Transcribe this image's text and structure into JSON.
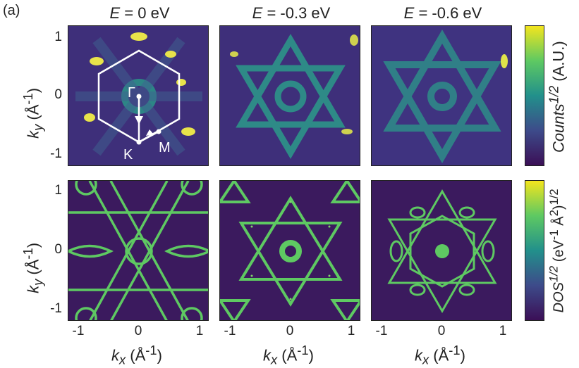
{
  "figure": {
    "panel_label": "(a)",
    "titles": [
      {
        "var": "E",
        "rest": " = 0 eV"
      },
      {
        "var": "E",
        "rest": " = -0.3 eV"
      },
      {
        "var": "E",
        "rest": " = -0.6 eV"
      }
    ],
    "y_ticks": [
      "1",
      "0",
      "-1"
    ],
    "x_ticks": [
      "-1",
      "0",
      "1"
    ],
    "y_axis": {
      "var": "k",
      "sub": "y",
      "unit": " (Å",
      "exp": "-1",
      "close": ")"
    },
    "x_axis": {
      "var": "k",
      "sub": "x",
      "unit": " (Å",
      "exp": "-1",
      "close": ")"
    },
    "colorbar_top": {
      "base": "Counts",
      "exp": "1/2",
      "unit": " (A.U.)"
    },
    "colorbar_bottom": {
      "base": "DOS",
      "exp": "1/2",
      "unit": " (eV",
      "unit_exp1": "-1",
      "unit_mid": " Å",
      "unit_exp2": "2",
      "unit_close": ")",
      "unit_exp3": "1/2"
    },
    "bz_labels": {
      "gamma": "Γ",
      "k": "K",
      "m": "M"
    },
    "colors": {
      "low": "#3b0f56",
      "mid": "#22908b",
      "high": "#f3e51e",
      "line": "#5ec962"
    }
  }
}
